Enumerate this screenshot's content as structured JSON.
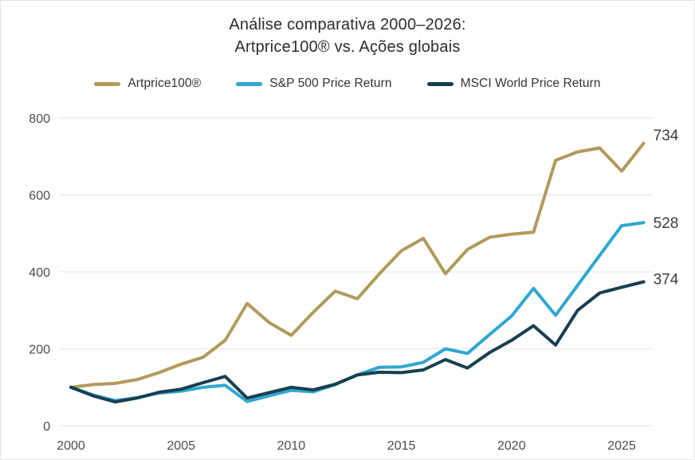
{
  "title": {
    "line1": "Análise comparativa 2000–2026:",
    "line2": "Artprice100® vs. Ações globais"
  },
  "legend": {
    "position": "top",
    "items": [
      {
        "id": "artprice100",
        "label": "Artprice100®",
        "color": "#b29a5b"
      },
      {
        "id": "sp500",
        "label": "S&P 500 Price Return",
        "color": "#2fa7d1"
      },
      {
        "id": "msci",
        "label": "MSCI World Price Return",
        "color": "#17404f"
      }
    ]
  },
  "chart_data": {
    "type": "line",
    "title": "Análise comparativa 2000–2026: Artprice100® vs. Ações globais",
    "xlabel": "",
    "ylabel": "",
    "x": [
      2000,
      2001,
      2002,
      2003,
      2004,
      2005,
      2006,
      2007,
      2008,
      2009,
      2010,
      2011,
      2012,
      2013,
      2014,
      2015,
      2016,
      2017,
      2018,
      2019,
      2020,
      2021,
      2022,
      2023,
      2024,
      2025,
      2026
    ],
    "xticks": [
      2000,
      2005,
      2010,
      2015,
      2020,
      2025
    ],
    "yticks": [
      0,
      200,
      400,
      600,
      800
    ],
    "ylim": [
      0,
      800
    ],
    "xlim": [
      2000,
      2026
    ],
    "grid": "horizontal-only",
    "legend_position": "top",
    "series": [
      {
        "name": "Artprice100®",
        "color": "#b29a5b",
        "end_label": "734",
        "values": [
          100,
          107,
          110,
          120,
          138,
          160,
          178,
          222,
          318,
          268,
          235,
          295,
          350,
          330,
          395,
          455,
          487,
          395,
          458,
          490,
          498,
          503,
          690,
          712,
          722,
          662,
          734
        ]
      },
      {
        "name": "S&P 500 Price Return",
        "color": "#2fa7d1",
        "end_label": "528",
        "values": [
          100,
          80,
          65,
          73,
          85,
          90,
          100,
          105,
          63,
          78,
          92,
          88,
          107,
          132,
          152,
          153,
          165,
          200,
          188,
          237,
          285,
          357,
          287,
          365,
          443,
          520,
          528
        ]
      },
      {
        "name": "MSCI World Price Return",
        "color": "#17404f",
        "end_label": "374",
        "values": [
          100,
          78,
          62,
          72,
          87,
          95,
          112,
          128,
          72,
          86,
          100,
          93,
          108,
          132,
          139,
          138,
          145,
          172,
          150,
          190,
          222,
          260,
          210,
          300,
          345,
          360,
          374
        ]
      }
    ]
  },
  "colors": {
    "background": "#ffffff",
    "grid": "#ededed",
    "title_text": "#2d2d2d",
    "tick_text": "#4d4d4d",
    "end_label_text": "#3c3c3c",
    "frame_border": "#e3e3e3"
  }
}
